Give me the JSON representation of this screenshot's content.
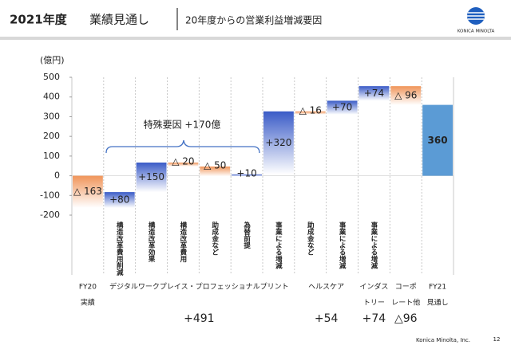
{
  "header": {
    "year": "2021年度",
    "title": "業績見通し",
    "subtitle": "20年度からの営業利益増減要因",
    "logo": "KONICA MINOLTA"
  },
  "footer": {
    "company": "Konica Minolta, Inc.",
    "page": "12"
  },
  "chart_data": {
    "type": "waterfall",
    "y_label": "(億円)",
    "categories": [
      null,
      "構造改革費用削減",
      "構造改革効果",
      "構造改革費用",
      "助成金など",
      "為替前提",
      "事業による増減",
      "助成金など",
      "事業による増減",
      "事業による増減",
      null,
      null
    ],
    "values": [
      -163,
      80,
      150,
      -20,
      -50,
      10,
      320,
      -16,
      70,
      74,
      -96,
      360
    ],
    "value_labels": [
      "△ 163",
      "+80",
      "+150",
      "△ 20",
      "△ 50",
      "+10",
      "+320",
      "△ 16",
      "+70",
      "+74",
      "△ 96",
      "360"
    ],
    "increase_color": "#3a5bc7",
    "decrease_color": "#f0955a",
    "total_color": "#5b9bd5",
    "ylim": [
      -200,
      500
    ],
    "yticks": [
      -200,
      -100,
      0,
      100,
      200,
      300,
      400,
      500
    ],
    "annotation": "特殊要因 +170億",
    "groups": [
      {
        "lines": [
          "FY20",
          "実績"
        ]
      },
      {
        "lines": [
          "デジタルワークプレイス・プロフェッショナルプリント"
        ],
        "total": {
          "value": 491,
          "label": "+491"
        }
      },
      {
        "lines": [
          "ヘルスケア"
        ],
        "total": {
          "value": 54,
          "label": "+54"
        }
      },
      {
        "lines": [
          "インダス",
          "トリー"
        ],
        "total": {
          "value": 74,
          "label": "+74"
        }
      },
      {
        "lines": [
          "コーポ",
          "レート他"
        ],
        "total": {
          "value": -96,
          "label": "△96"
        }
      },
      {
        "lines": [
          "FY21",
          "見通し"
        ]
      }
    ]
  }
}
